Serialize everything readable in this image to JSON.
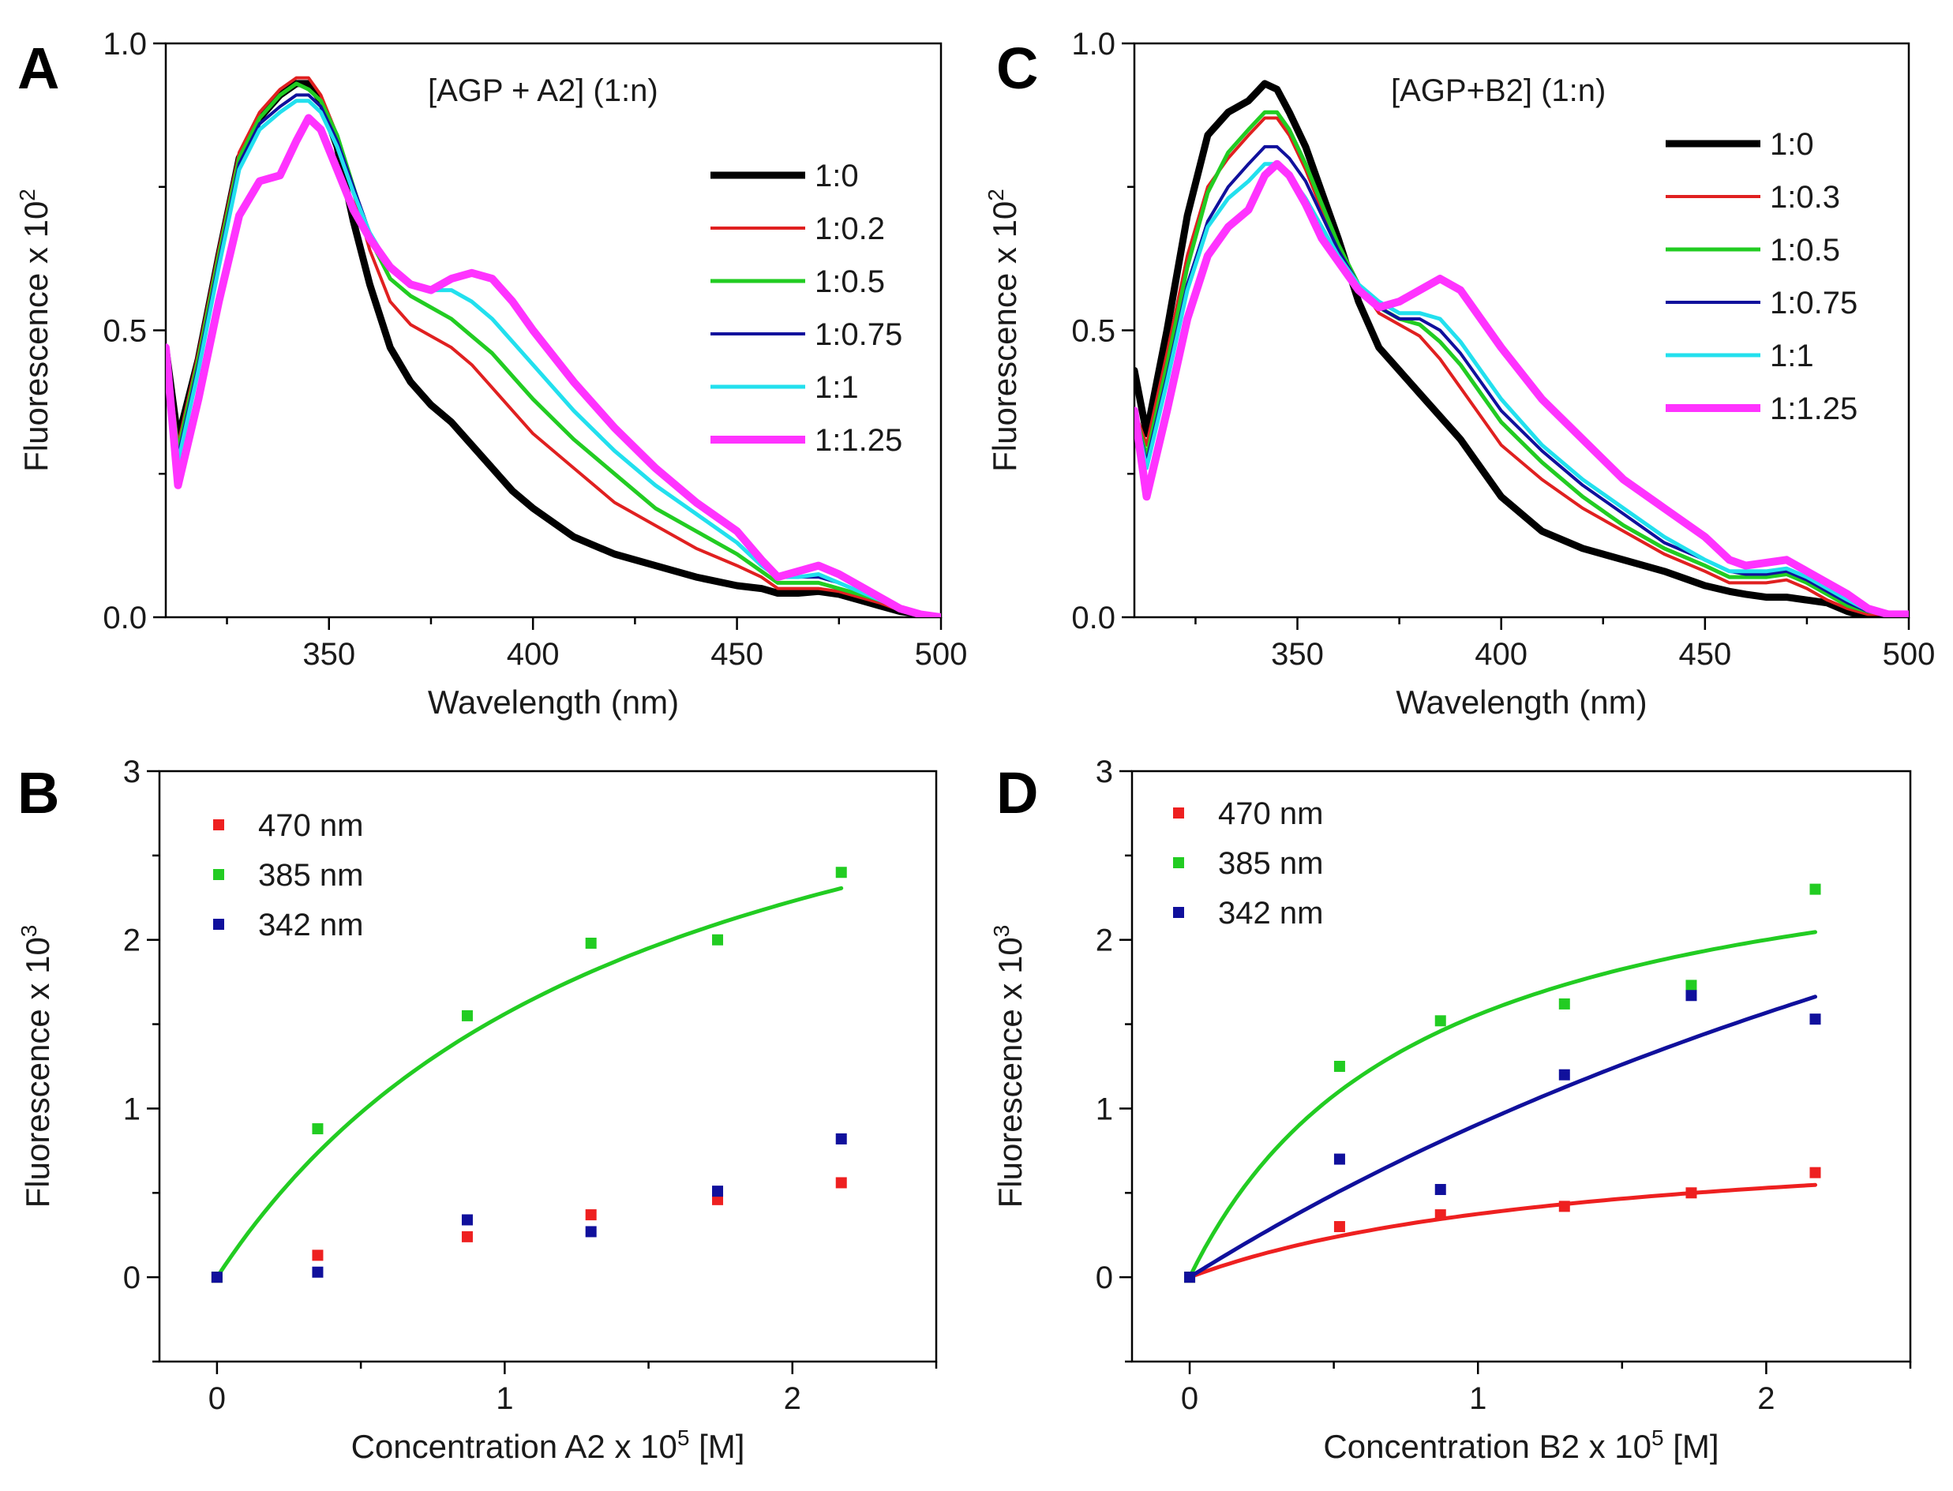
{
  "chart_data": [
    {
      "panel": "A",
      "type": "line",
      "annotation": "[AGP + A2] (1:n)",
      "xlabel": "Wavelength (nm)",
      "ylabel": "Fluorescence x 10",
      "ylabel_sup": "2",
      "xlim": [
        310,
        500
      ],
      "ylim": [
        0,
        1.0
      ],
      "xticks": [
        350,
        400,
        450,
        500
      ],
      "yticks": [
        0.0,
        0.5,
        1.0
      ],
      "xtick_labels": [
        "350",
        "400",
        "450",
        "500"
      ],
      "ytick_labels": [
        "0.0",
        "0.5",
        "1.0"
      ],
      "legend_position": "upper-right",
      "x": [
        310,
        313,
        318,
        323,
        328,
        333,
        338,
        342,
        345,
        348,
        352,
        356,
        360,
        365,
        370,
        375,
        380,
        385,
        390,
        395,
        400,
        410,
        420,
        430,
        440,
        450,
        456,
        460,
        465,
        470,
        475,
        480,
        485,
        490,
        495,
        500
      ],
      "series": [
        {
          "name": "1:0",
          "color": "#000000",
          "width": 9,
          "values": [
            0.47,
            0.31,
            0.45,
            0.63,
            0.8,
            0.87,
            0.91,
            0.93,
            0.93,
            0.9,
            0.82,
            0.69,
            0.58,
            0.47,
            0.41,
            0.37,
            0.34,
            0.3,
            0.26,
            0.22,
            0.19,
            0.14,
            0.11,
            0.09,
            0.07,
            0.055,
            0.05,
            0.042,
            0.042,
            0.045,
            0.04,
            0.03,
            0.02,
            0.01,
            0.005,
            0.0
          ]
        },
        {
          "name": "1:0.2",
          "color": "#e02020",
          "width": 4,
          "values": [
            0.47,
            0.3,
            0.46,
            0.64,
            0.81,
            0.88,
            0.92,
            0.94,
            0.94,
            0.91,
            0.84,
            0.74,
            0.64,
            0.55,
            0.51,
            0.49,
            0.47,
            0.44,
            0.4,
            0.36,
            0.32,
            0.26,
            0.2,
            0.16,
            0.12,
            0.09,
            0.07,
            0.05,
            0.05,
            0.05,
            0.045,
            0.035,
            0.025,
            0.012,
            0.005,
            0.0
          ]
        },
        {
          "name": "1:0.5",
          "color": "#22cc22",
          "width": 5,
          "values": [
            0.47,
            0.29,
            0.45,
            0.63,
            0.8,
            0.87,
            0.91,
            0.93,
            0.92,
            0.9,
            0.84,
            0.75,
            0.66,
            0.59,
            0.56,
            0.54,
            0.52,
            0.49,
            0.46,
            0.42,
            0.38,
            0.31,
            0.25,
            0.19,
            0.15,
            0.11,
            0.08,
            0.06,
            0.06,
            0.06,
            0.05,
            0.04,
            0.03,
            0.015,
            0.005,
            0.0
          ]
        },
        {
          "name": "1:0.75",
          "color": "#10109c",
          "width": 4,
          "values": [
            0.47,
            0.28,
            0.44,
            0.62,
            0.79,
            0.86,
            0.89,
            0.91,
            0.91,
            0.89,
            0.83,
            0.75,
            0.67,
            0.61,
            0.58,
            0.57,
            0.57,
            0.55,
            0.52,
            0.48,
            0.44,
            0.36,
            0.29,
            0.23,
            0.18,
            0.13,
            0.09,
            0.07,
            0.07,
            0.07,
            0.06,
            0.045,
            0.03,
            0.015,
            0.005,
            0.0
          ]
        },
        {
          "name": "1:1",
          "color": "#22e0ee",
          "width": 5,
          "values": [
            0.47,
            0.27,
            0.43,
            0.61,
            0.78,
            0.85,
            0.88,
            0.9,
            0.9,
            0.88,
            0.82,
            0.74,
            0.67,
            0.61,
            0.58,
            0.57,
            0.57,
            0.55,
            0.52,
            0.48,
            0.44,
            0.36,
            0.29,
            0.23,
            0.18,
            0.13,
            0.09,
            0.07,
            0.07,
            0.075,
            0.06,
            0.045,
            0.03,
            0.015,
            0.005,
            0.0
          ]
        },
        {
          "name": "1:1.25",
          "color": "#ff33ff",
          "width": 10,
          "values": [
            0.47,
            0.23,
            0.38,
            0.55,
            0.7,
            0.76,
            0.77,
            0.83,
            0.87,
            0.85,
            0.78,
            0.71,
            0.66,
            0.61,
            0.58,
            0.57,
            0.59,
            0.6,
            0.59,
            0.55,
            0.5,
            0.41,
            0.33,
            0.26,
            0.2,
            0.15,
            0.1,
            0.07,
            0.08,
            0.09,
            0.075,
            0.055,
            0.035,
            0.015,
            0.005,
            0.0
          ]
        }
      ]
    },
    {
      "panel": "B",
      "type": "scatter",
      "xlabel": "Concentration A2 x 10",
      "xlabel_sup": "5",
      "xlabel_suffix": " [M]",
      "ylabel": "Fluorescence x 10",
      "ylabel_sup": "3",
      "xlim": [
        -0.2,
        2.5
      ],
      "ylim": [
        -0.5,
        3.0
      ],
      "xticks": [
        0,
        1,
        2
      ],
      "yticks": [
        0,
        1,
        2,
        3
      ],
      "xtick_labels": [
        "0",
        "1",
        "2"
      ],
      "ytick_labels": [
        "0",
        "1",
        "2",
        "3"
      ],
      "legend_position": "upper-left",
      "series": [
        {
          "name": "470 nm",
          "color": "#ee2020",
          "x": [
            0,
            0.35,
            0.87,
            1.3,
            1.74,
            2.17
          ],
          "values": [
            0.0,
            0.13,
            0.24,
            0.37,
            0.46,
            0.56
          ],
          "fit": null
        },
        {
          "name": "385 nm",
          "color": "#22cc22",
          "x": [
            0,
            0.35,
            0.87,
            1.3,
            1.74,
            2.17
          ],
          "values": [
            0.0,
            0.88,
            1.55,
            1.98,
            2.0,
            2.4
          ],
          "fit": {
            "type": "hyperbolic",
            "a": 3.9,
            "k": 1.5
          }
        },
        {
          "name": "342 nm",
          "color": "#10109c",
          "x": [
            0,
            0.35,
            0.87,
            1.3,
            1.74,
            2.17
          ],
          "values": [
            0.0,
            0.03,
            0.34,
            0.27,
            0.51,
            0.82
          ],
          "fit": null
        }
      ]
    },
    {
      "panel": "C",
      "type": "line",
      "annotation": "[AGP+B2] (1:n)",
      "xlabel": "Wavelength (nm)",
      "ylabel": "Fluorescence x 10",
      "ylabel_sup": "2",
      "xlim": [
        310,
        500
      ],
      "ylim": [
        0,
        1.0
      ],
      "xticks": [
        350,
        400,
        450,
        500
      ],
      "yticks": [
        0.0,
        0.5,
        1.0
      ],
      "xtick_labels": [
        "350",
        "400",
        "450",
        "500"
      ],
      "ytick_labels": [
        "0.0",
        "0.5",
        "1.0"
      ],
      "legend_position": "upper-right",
      "x": [
        310,
        313,
        318,
        323,
        328,
        333,
        338,
        342,
        345,
        348,
        352,
        356,
        360,
        365,
        370,
        375,
        380,
        385,
        390,
        395,
        400,
        410,
        420,
        430,
        440,
        450,
        456,
        460,
        465,
        470,
        475,
        480,
        485,
        490,
        495,
        500
      ],
      "series": [
        {
          "name": "1:0",
          "color": "#000000",
          "width": 9,
          "values": [
            0.43,
            0.32,
            0.5,
            0.7,
            0.84,
            0.88,
            0.9,
            0.93,
            0.92,
            0.88,
            0.82,
            0.74,
            0.66,
            0.55,
            0.47,
            0.43,
            0.39,
            0.35,
            0.31,
            0.26,
            0.21,
            0.15,
            0.12,
            0.1,
            0.08,
            0.055,
            0.045,
            0.04,
            0.035,
            0.035,
            0.03,
            0.025,
            0.01,
            0.0,
            0.0,
            0.0
          ]
        },
        {
          "name": "1:0.3",
          "color": "#e02020",
          "width": 4,
          "values": [
            0.36,
            0.3,
            0.46,
            0.63,
            0.75,
            0.8,
            0.84,
            0.87,
            0.87,
            0.84,
            0.78,
            0.71,
            0.65,
            0.58,
            0.53,
            0.51,
            0.49,
            0.45,
            0.4,
            0.35,
            0.3,
            0.24,
            0.19,
            0.15,
            0.11,
            0.08,
            0.06,
            0.06,
            0.06,
            0.065,
            0.05,
            0.03,
            0.015,
            0.005,
            0.005,
            0.005
          ]
        },
        {
          "name": "1:0.5",
          "color": "#22cc22",
          "width": 5,
          "values": [
            0.36,
            0.28,
            0.44,
            0.61,
            0.74,
            0.81,
            0.85,
            0.88,
            0.88,
            0.85,
            0.79,
            0.72,
            0.65,
            0.58,
            0.54,
            0.52,
            0.51,
            0.48,
            0.44,
            0.39,
            0.34,
            0.27,
            0.21,
            0.16,
            0.12,
            0.09,
            0.07,
            0.07,
            0.07,
            0.075,
            0.06,
            0.04,
            0.02,
            0.01,
            0.005,
            0.005
          ]
        },
        {
          "name": "1:0.75",
          "color": "#10109c",
          "width": 4,
          "values": [
            0.36,
            0.27,
            0.42,
            0.58,
            0.69,
            0.75,
            0.79,
            0.82,
            0.82,
            0.8,
            0.76,
            0.7,
            0.64,
            0.58,
            0.54,
            0.52,
            0.52,
            0.5,
            0.46,
            0.41,
            0.36,
            0.29,
            0.23,
            0.18,
            0.13,
            0.1,
            0.08,
            0.075,
            0.075,
            0.08,
            0.065,
            0.045,
            0.025,
            0.01,
            0.005,
            0.005
          ]
        },
        {
          "name": "1:1",
          "color": "#22e0ee",
          "width": 5,
          "values": [
            0.36,
            0.26,
            0.41,
            0.57,
            0.68,
            0.73,
            0.76,
            0.79,
            0.79,
            0.77,
            0.73,
            0.68,
            0.63,
            0.58,
            0.55,
            0.53,
            0.53,
            0.52,
            0.48,
            0.43,
            0.38,
            0.3,
            0.24,
            0.19,
            0.14,
            0.1,
            0.08,
            0.08,
            0.08,
            0.085,
            0.07,
            0.05,
            0.03,
            0.012,
            0.005,
            0.005
          ]
        },
        {
          "name": "1:1.25",
          "color": "#ff33ff",
          "width": 10,
          "values": [
            0.36,
            0.21,
            0.36,
            0.52,
            0.63,
            0.68,
            0.71,
            0.77,
            0.79,
            0.77,
            0.72,
            0.66,
            0.62,
            0.57,
            0.54,
            0.55,
            0.57,
            0.59,
            0.57,
            0.52,
            0.47,
            0.38,
            0.31,
            0.24,
            0.19,
            0.14,
            0.1,
            0.09,
            0.095,
            0.1,
            0.08,
            0.06,
            0.04,
            0.015,
            0.005,
            0.005
          ]
        }
      ]
    },
    {
      "panel": "D",
      "type": "scatter",
      "xlabel": "Concentration B2 x 10",
      "xlabel_sup": "5",
      "xlabel_suffix": " [M]",
      "ylabel": "Fluorescence x 10",
      "ylabel_sup": "3",
      "xlim": [
        -0.2,
        2.5
      ],
      "ylim": [
        -0.5,
        3.0
      ],
      "xticks": [
        0,
        1,
        2
      ],
      "yticks": [
        0,
        1,
        2,
        3
      ],
      "xtick_labels": [
        "0",
        "1",
        "2"
      ],
      "ytick_labels": [
        "0",
        "1",
        "2",
        "3"
      ],
      "legend_position": "upper-left",
      "series": [
        {
          "name": "470 nm",
          "color": "#ee2020",
          "x": [
            0,
            0.52,
            0.87,
            1.3,
            1.74,
            2.17
          ],
          "values": [
            0.0,
            0.3,
            0.37,
            0.42,
            0.5,
            0.62
          ],
          "fit": {
            "type": "hyperbolic",
            "a": 0.9,
            "k": 1.4
          }
        },
        {
          "name": "385 nm",
          "color": "#22cc22",
          "x": [
            0,
            0.52,
            0.87,
            1.3,
            1.74,
            2.17
          ],
          "values": [
            0.0,
            1.25,
            1.52,
            1.62,
            1.73,
            2.3
          ],
          "fit": {
            "type": "hyperbolic",
            "a": 2.8,
            "k": 0.8
          }
        },
        {
          "name": "342 nm",
          "color": "#10109c",
          "x": [
            0,
            0.52,
            0.87,
            1.3,
            1.74,
            2.17
          ],
          "values": [
            0.0,
            0.7,
            0.52,
            1.2,
            1.67,
            1.53
          ],
          "fit": {
            "type": "hyperbolic",
            "a": 5.8,
            "k": 5.4
          }
        }
      ]
    }
  ]
}
